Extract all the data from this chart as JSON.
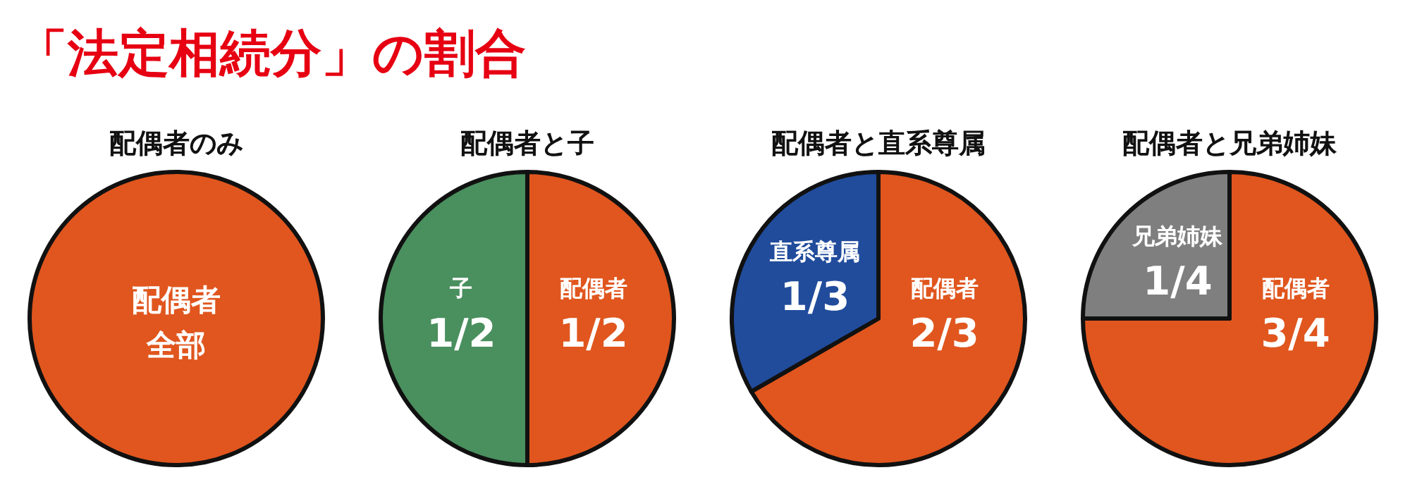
{
  "chart_data": [
    {
      "type": "pie",
      "title": "配偶者のみ",
      "annotations": [
        "「法定相続分」の割合"
      ],
      "categories": [
        "配偶者"
      ],
      "values": [
        1
      ],
      "value_labels": [
        "全部"
      ],
      "colors": [
        "#e0561e"
      ]
    },
    {
      "type": "pie",
      "title": "配偶者と子",
      "categories": [
        "配偶者",
        "子"
      ],
      "values": [
        0.5,
        0.5
      ],
      "value_labels": [
        "1/2",
        "1/2"
      ],
      "colors": [
        "#e0561e",
        "#4a8f5e"
      ]
    },
    {
      "type": "pie",
      "title": "配偶者と直系尊属",
      "categories": [
        "配偶者",
        "直系尊属"
      ],
      "values": [
        0.667,
        0.333
      ],
      "value_labels": [
        "2/3",
        "1/3"
      ],
      "colors": [
        "#e0561e",
        "#214c9c"
      ]
    },
    {
      "type": "pie",
      "title": "配偶者と兄弟姉妹",
      "categories": [
        "配偶者",
        "兄弟姉妹"
      ],
      "values": [
        0.75,
        0.25
      ],
      "value_labels": [
        "3/4",
        "1/4"
      ],
      "colors": [
        "#e0561e",
        "#7f7f7f"
      ]
    }
  ]
}
